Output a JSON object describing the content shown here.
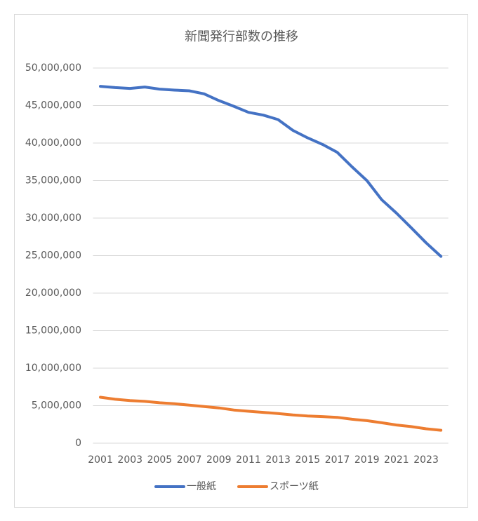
{
  "chart_data": {
    "type": "line",
    "title": "新聞発行部数の推移",
    "categories": [
      2001,
      null,
      2003,
      null,
      2005,
      null,
      2007,
      null,
      2009,
      null,
      2011,
      null,
      2013,
      null,
      2015,
      null,
      2017,
      null,
      2019,
      null,
      2021,
      null,
      2023,
      null
    ],
    "series": [
      {
        "name": "一般紙",
        "color": "#4472c4",
        "values": [
          47560000,
          47390000,
          47280000,
          47470000,
          47190000,
          47060000,
          46960000,
          46560000,
          45660000,
          44910000,
          44090000,
          43720000,
          43130000,
          41690000,
          40690000,
          39820000,
          38760000,
          36820000,
          35000000,
          32450000,
          30650000,
          28700000,
          26700000,
          24900000
        ]
      },
      {
        "name": "スポーツ紙",
        "color": "#ed7d31",
        "values": [
          6120000,
          5850000,
          5680000,
          5570000,
          5380000,
          5250000,
          5070000,
          4880000,
          4700000,
          4420000,
          4250000,
          4100000,
          3950000,
          3760000,
          3630000,
          3540000,
          3440000,
          3190000,
          3000000,
          2720000,
          2420000,
          2210000,
          1920000,
          1720000
        ]
      }
    ],
    "ylim": [
      0,
      50000000
    ],
    "yticks": [
      0,
      {
        "value": 5000000,
        "label": "5,000,000"
      },
      {
        "value": 10000000,
        "label": "10,000,000"
      },
      {
        "value": 15000000,
        "label": "15,000,000"
      },
      {
        "value": 20000000,
        "label": "20,000,000"
      },
      {
        "value": 25000000,
        "label": "25,000,000"
      },
      {
        "value": 30000000,
        "label": "30,000,000"
      },
      {
        "value": 35000000,
        "label": "35,000,000"
      },
      {
        "value": 40000000,
        "label": "40,000,000"
      },
      {
        "value": 45000000,
        "label": "45,000,000"
      },
      {
        "value": 50000000,
        "label": "50,000,000"
      }
    ],
    "grid": true,
    "legend": "bottom"
  }
}
